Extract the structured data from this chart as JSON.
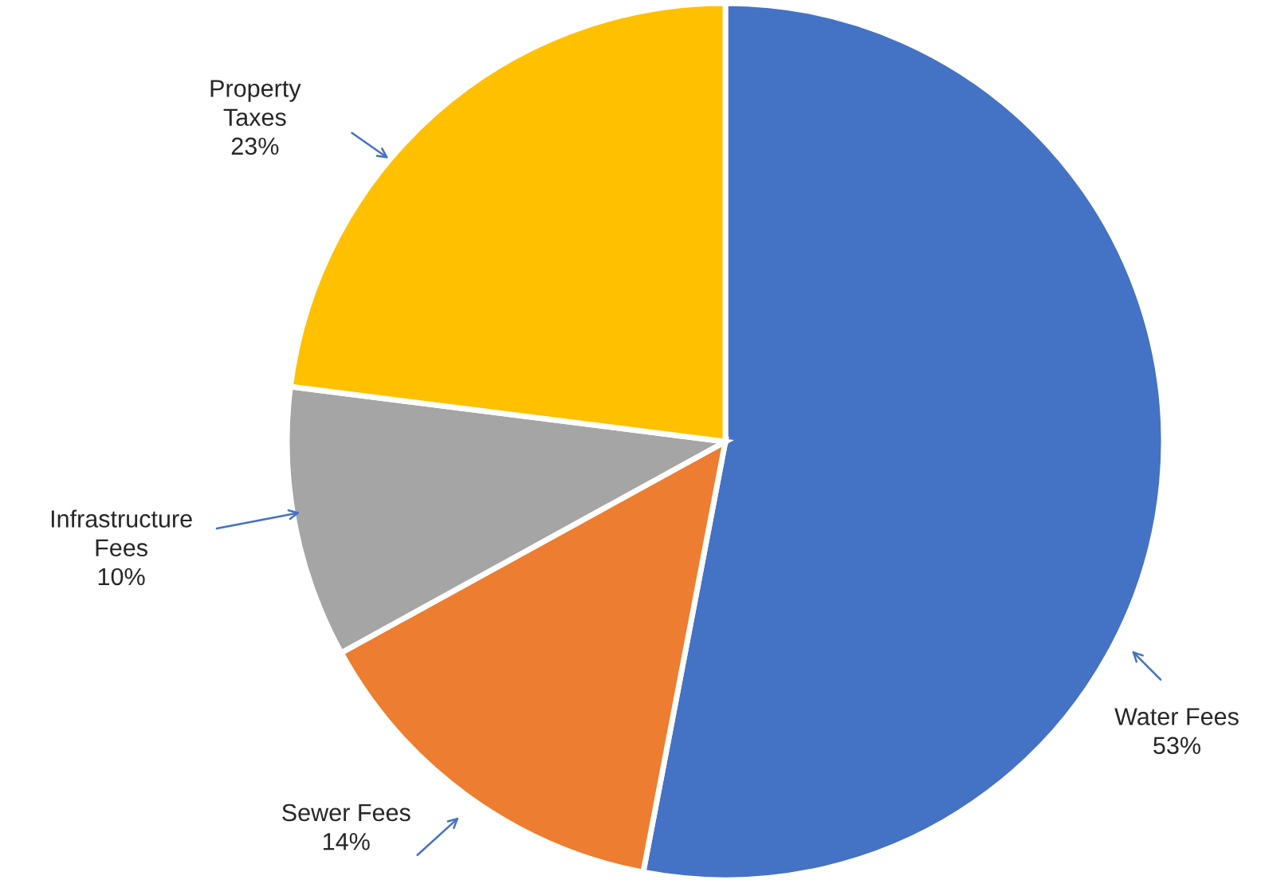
{
  "chart_data": {
    "type": "pie",
    "categories": [
      "Water Fees",
      "Sewer Fees",
      "Infrastructure\nFees",
      "Property\nTaxes"
    ],
    "values": [
      53,
      14,
      10,
      23
    ],
    "colors": [
      "#4472c4",
      "#ed7d31",
      "#a5a5a5",
      "#ffc000"
    ],
    "value_labels": [
      "53%",
      "14%",
      "10%",
      "23%"
    ]
  }
}
